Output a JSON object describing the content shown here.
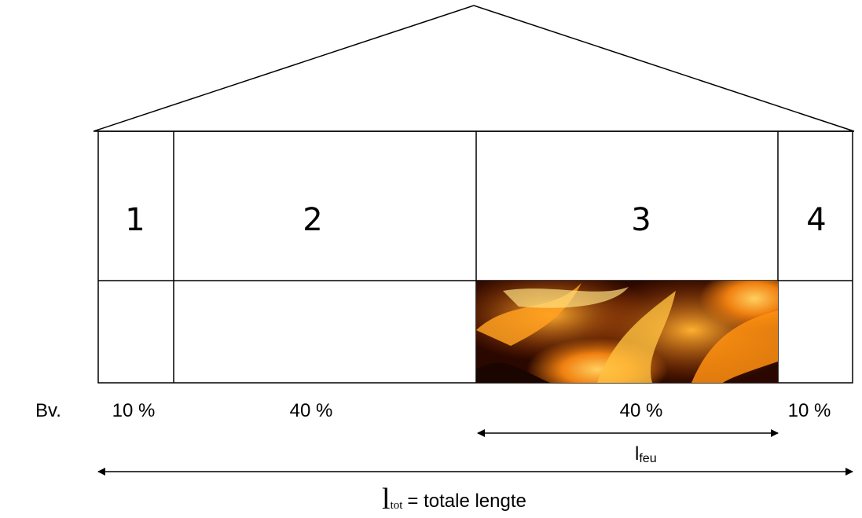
{
  "compartments": [
    {
      "label": "1",
      "share": "10 %"
    },
    {
      "label": "2",
      "share": "40 %"
    },
    {
      "label": "3",
      "share": "40 %"
    },
    {
      "label": "4",
      "share": "10 %"
    }
  ],
  "example_prefix": "Bv.",
  "fire_length": {
    "symbol": "l",
    "subscript": "feu"
  },
  "total_length": {
    "symbol": "l",
    "subscript": "tot",
    "description": "= totale lengte"
  }
}
